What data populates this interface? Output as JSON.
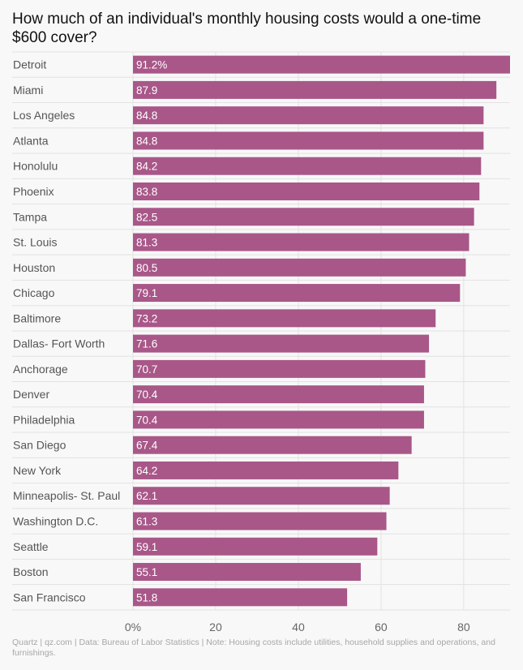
{
  "title": "How much of an individual's monthly housing costs would a one-time $600 cover?",
  "footer": "Quartz | qz.com | Data: Bureau of Labor Statistics | Note: Housing costs include utilities, household supplies and operations, and furnishings.",
  "colors": {
    "bar": "#a85788",
    "grid": "#e2e2e2",
    "background": "#f8f8f8"
  },
  "chart_data": {
    "type": "bar",
    "orientation": "horizontal",
    "title": "How much of an individual's monthly housing costs would a one-time $600 cover?",
    "xlabel": "",
    "ylabel": "",
    "xlim": [
      0,
      91.2
    ],
    "ticks": [
      0,
      20,
      40,
      60,
      80
    ],
    "tick_labels": [
      "0%",
      "20",
      "40",
      "60",
      "80"
    ],
    "grid": true,
    "categories": [
      "Detroit",
      "Miami",
      "Los Angeles",
      "Atlanta",
      "Honolulu",
      "Phoenix",
      "Tampa",
      "St. Louis",
      "Houston",
      "Chicago",
      "Baltimore",
      "Dallas- Fort Worth",
      "Anchorage",
      "Denver",
      "Philadelphia",
      "San Diego",
      "New York",
      "Minneapolis- St. Paul",
      "Washington D.C.",
      "Seattle",
      "Boston",
      "San Francisco"
    ],
    "values": [
      91.2,
      87.9,
      84.8,
      84.8,
      84.2,
      83.8,
      82.5,
      81.3,
      80.5,
      79.1,
      73.2,
      71.6,
      70.7,
      70.4,
      70.4,
      67.4,
      64.2,
      62.1,
      61.3,
      59.1,
      55.1,
      51.8
    ],
    "value_labels": [
      "91.2%",
      "87.9",
      "84.8",
      "84.8",
      "84.2",
      "83.8",
      "82.5",
      "81.3",
      "80.5",
      "79.1",
      "73.2",
      "71.6",
      "70.7",
      "70.4",
      "70.4",
      "67.4",
      "64.2",
      "62.1",
      "61.3",
      "59.1",
      "55.1",
      "51.8"
    ]
  }
}
